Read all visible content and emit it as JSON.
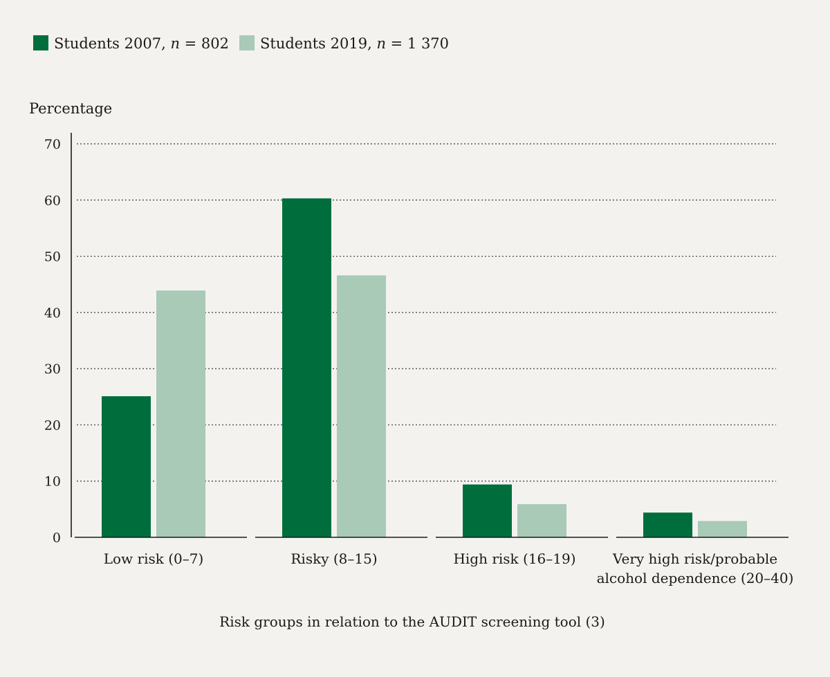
{
  "chart_data": {
    "type": "bar",
    "title": "",
    "ylabel": "Percentage",
    "xlabel": "Risk groups in relation to the AUDIT screening tool (3)",
    "ylim": [
      0,
      70
    ],
    "yticks": [
      0,
      10,
      20,
      30,
      40,
      50,
      60,
      70
    ],
    "grid": true,
    "legend_position": "top-left",
    "categories": [
      [
        "Low risk (0–7)"
      ],
      [
        "Risky (8–15)"
      ],
      [
        "High risk (16–19)"
      ],
      [
        "Very high risk/probable",
        "alcohol dependence (20–40)"
      ]
    ],
    "series": [
      {
        "name": "Students 2007",
        "legend_prefix": "Students 2007, ",
        "n_symbol": "n",
        "n_value": " = 802",
        "color": "#006e3c",
        "values": [
          25.1,
          60.3,
          9.4,
          4.4
        ]
      },
      {
        "name": "Students 2019",
        "legend_prefix": "Students 2019, ",
        "n_symbol": "n",
        "n_value": " = 1 370",
        "color": "#a8cab7",
        "values": [
          43.9,
          46.6,
          5.9,
          2.9
        ]
      }
    ]
  }
}
